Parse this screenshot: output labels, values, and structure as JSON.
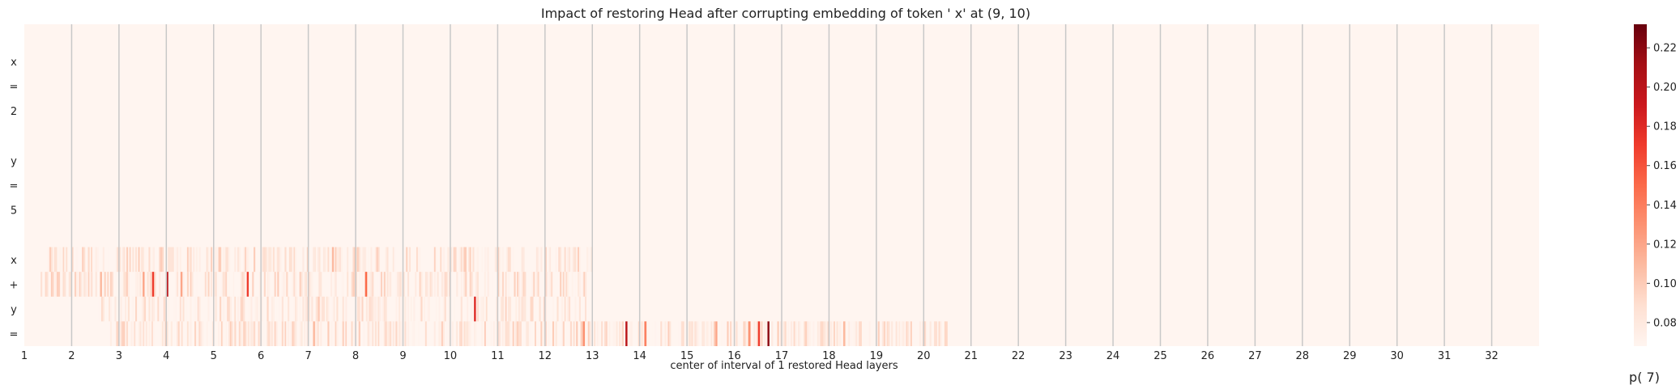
{
  "chart_data": {
    "type": "heatmap",
    "title": "Impact of restoring Head after corrupting embedding of token ' x' at (9, 10)",
    "xlabel": "center of interval of 1 restored Head layers",
    "colorbar_label": "p( 7)",
    "row_labels": [
      "",
      "x",
      "=",
      "2",
      "",
      "y",
      "=",
      "5",
      "",
      "x",
      "+",
      "y",
      "="
    ],
    "x_tick_labels": [
      "1",
      "2",
      "3",
      "4",
      "5",
      "6",
      "7",
      "8",
      "9",
      "10",
      "11",
      "12",
      "13",
      "14",
      "15",
      "16",
      "17",
      "18",
      "19",
      "20",
      "21",
      "22",
      "23",
      "24",
      "25",
      "26",
      "27",
      "28",
      "29",
      "30",
      "31",
      "32"
    ],
    "colorbar_ticks": [
      0.08,
      0.1,
      0.12,
      0.14,
      0.16,
      0.18,
      0.2,
      0.22
    ],
    "value_range": [
      0.068,
      0.232
    ],
    "baseline_value": 0.068,
    "n_layers": 32,
    "heads_per_layer": 32,
    "vertical_layer_lines": true,
    "colormap": "Reds",
    "colormap_stops": [
      "#fff5f0",
      "#fee0d2",
      "#fcbba1",
      "#fc9272",
      "#fb6a4a",
      "#ef3b2c",
      "#cb181d",
      "#a50f15",
      "#67000d"
    ],
    "grid_line_color": "#c8c8c8",
    "notable_cells": [
      {
        "row": 10,
        "layer": 3.7,
        "value": 0.17
      },
      {
        "row": 10,
        "layer": 4.0,
        "value": 0.2
      },
      {
        "row": 10,
        "layer": 4.3,
        "value": 0.12
      },
      {
        "row": 10,
        "layer": 5.7,
        "value": 0.17
      },
      {
        "row": 10,
        "layer": 8.2,
        "value": 0.15
      },
      {
        "row": 10,
        "layer": 2.6,
        "value": 0.11
      },
      {
        "row": 10,
        "layer": 3.5,
        "value": 0.12
      },
      {
        "row": 11,
        "layer": 10.5,
        "value": 0.18
      },
      {
        "row": 11,
        "layer": 7.2,
        "value": 0.1
      },
      {
        "row": 9,
        "layer": 7.5,
        "value": 0.11
      },
      {
        "row": 9,
        "layer": 5.1,
        "value": 0.1
      },
      {
        "row": 9,
        "layer": 10.3,
        "value": 0.1
      },
      {
        "row": 12,
        "layer": 13.7,
        "value": 0.2
      },
      {
        "row": 12,
        "layer": 16.7,
        "value": 0.22
      },
      {
        "row": 12,
        "layer": 16.5,
        "value": 0.17
      },
      {
        "row": 12,
        "layer": 12.8,
        "value": 0.13
      },
      {
        "row": 12,
        "layer": 14.1,
        "value": 0.14
      },
      {
        "row": 12,
        "layer": 15.6,
        "value": 0.12
      },
      {
        "row": 12,
        "layer": 16.3,
        "value": 0.13
      },
      {
        "row": 12,
        "layer": 18.3,
        "value": 0.11
      },
      {
        "row": 12,
        "layer": 7.1,
        "value": 0.11
      },
      {
        "row": 12,
        "layer": 20.0,
        "value": 0.095
      }
    ],
    "noise_bands": [
      {
        "row": 9,
        "from": 1.5,
        "to": 13.0,
        "max": 0.1
      },
      {
        "row": 10,
        "from": 1.2,
        "to": 13.0,
        "max": 0.1
      },
      {
        "row": 11,
        "from": 2.5,
        "to": 13.0,
        "max": 0.095
      },
      {
        "row": 12,
        "from": 2.8,
        "to": 20.5,
        "max": 0.1
      }
    ]
  }
}
